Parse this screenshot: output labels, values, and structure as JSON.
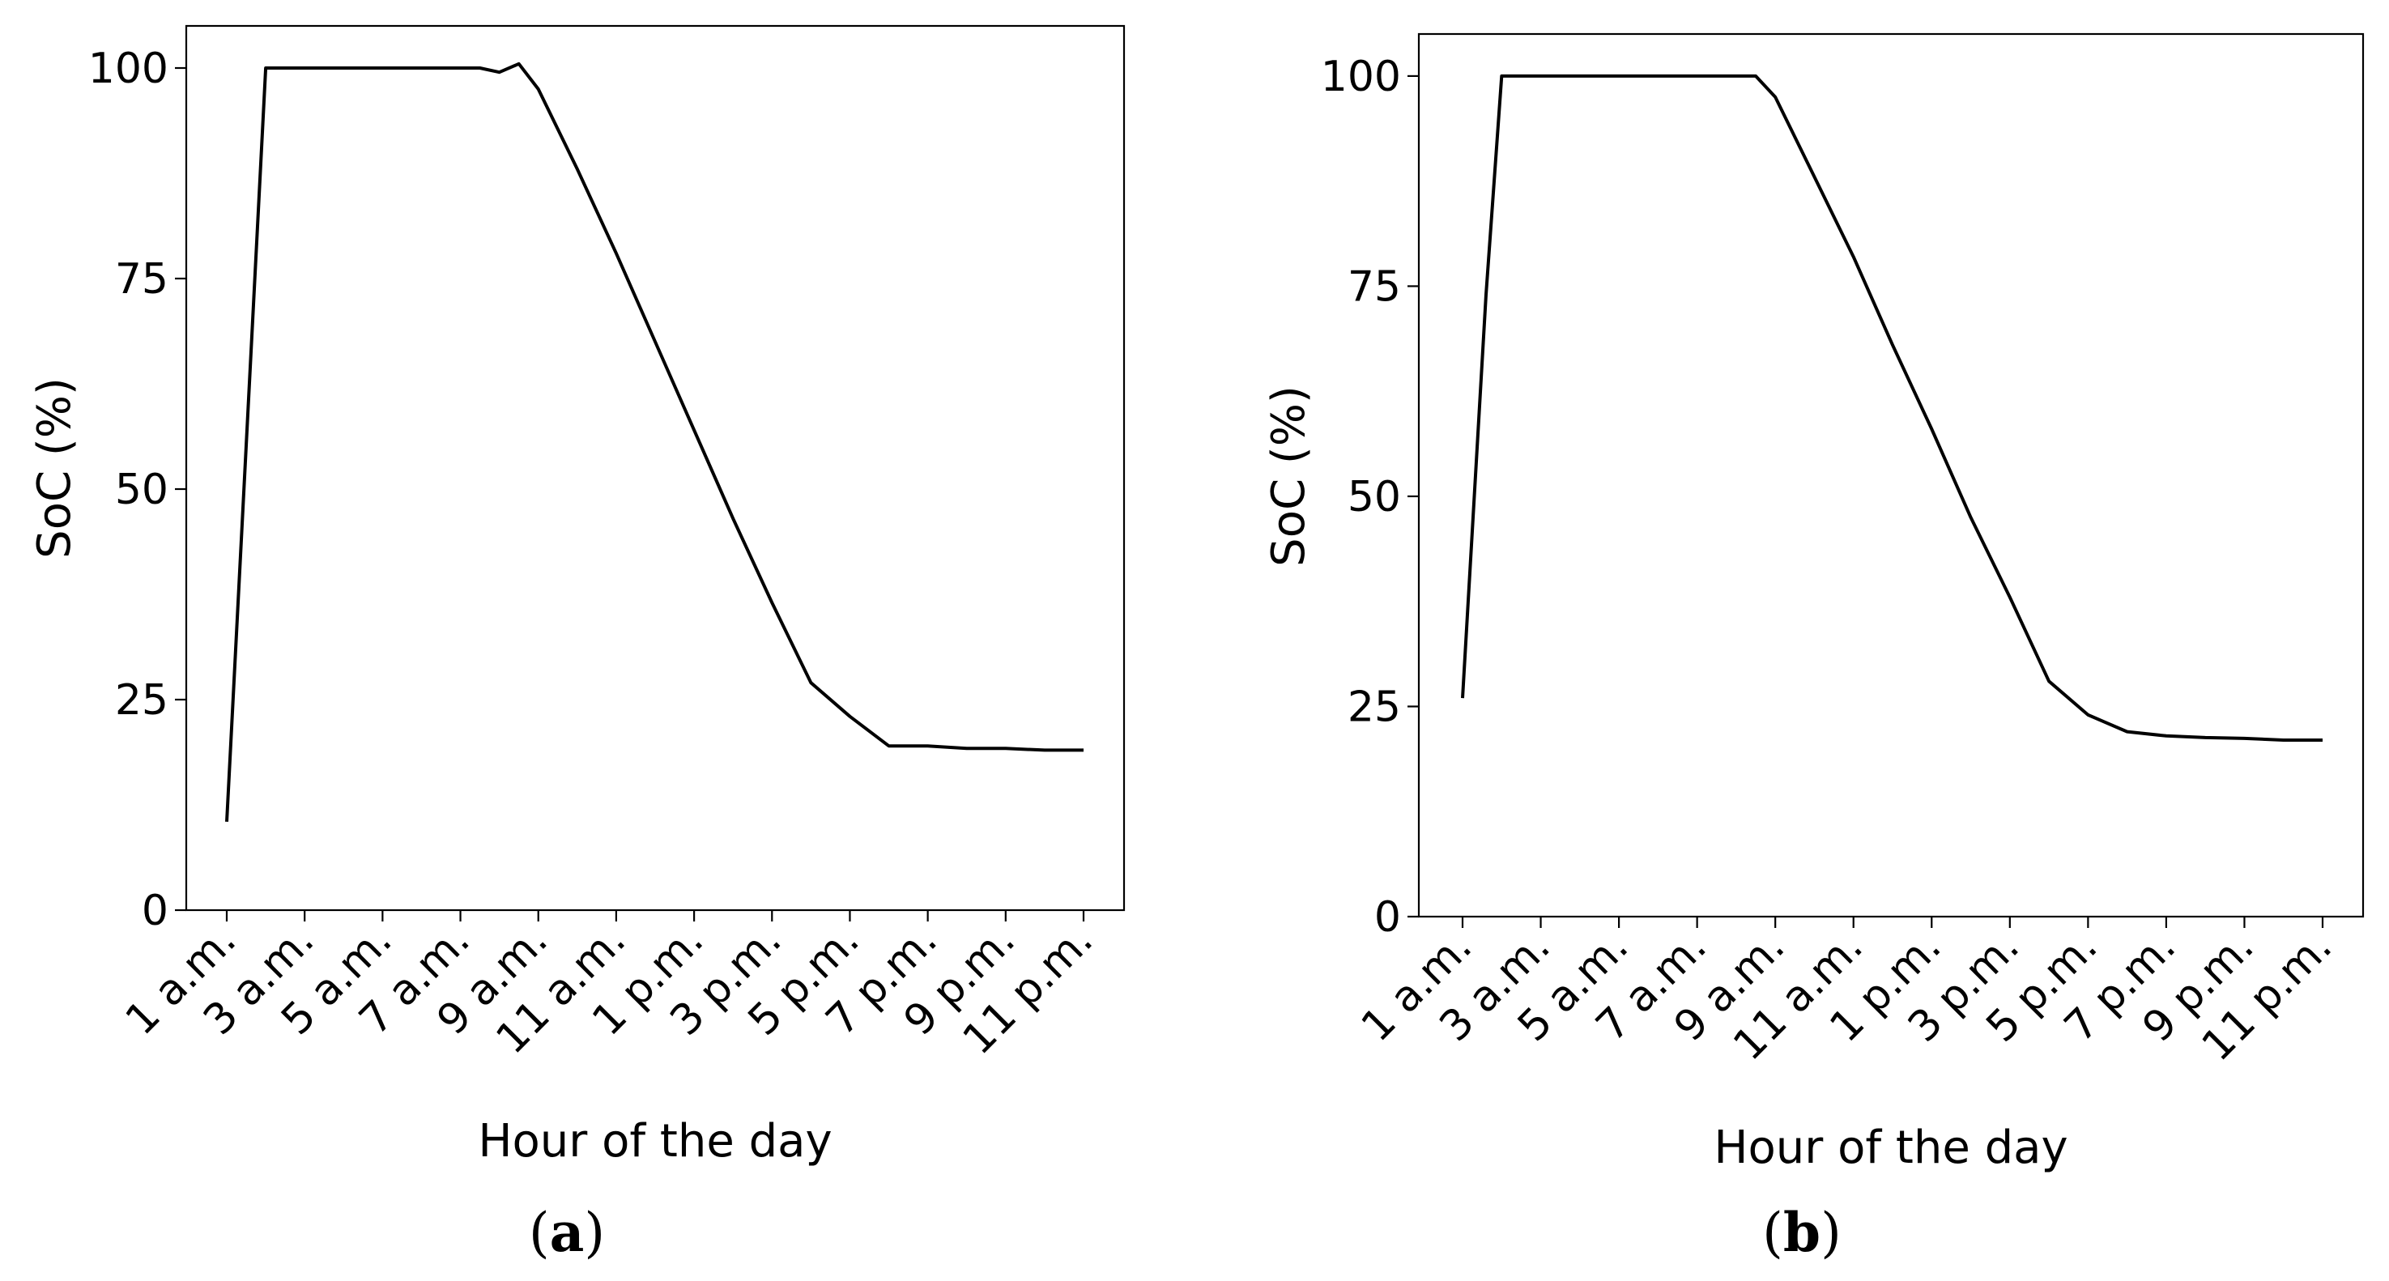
{
  "chart_data": [
    {
      "type": "line",
      "panel_label": "a",
      "xlabel": "Hour of the day",
      "ylabel": "SoC (%)",
      "ylim": [
        0,
        105
      ],
      "yticks": [
        0,
        25,
        50,
        75,
        100
      ],
      "xticks": [
        1,
        3,
        5,
        7,
        9,
        11,
        13,
        15,
        17,
        19,
        21,
        23
      ],
      "xtick_labels": [
        "1 a.m.",
        "3 a.m.",
        "5 a.m.",
        "7 a.m.",
        "9 a.m.",
        "11 a.m.",
        "1 p.m.",
        "3 p.m.",
        "5 p.m.",
        "7 p.m.",
        "9 p.m.",
        "11 p.m."
      ],
      "grid": false,
      "color": "#000000",
      "series": [
        {
          "x": [
            1,
            2,
            3,
            4,
            5,
            6,
            7,
            7.5,
            8,
            8.5,
            9,
            10,
            11,
            12,
            13,
            14,
            15,
            16,
            17,
            18,
            19,
            20,
            21,
            22,
            23
          ],
          "values": [
            10.5,
            100,
            100,
            100,
            100,
            100,
            100,
            100,
            99.5,
            100.5,
            97.5,
            88,
            78,
            67.5,
            57,
            46.5,
            36.5,
            27,
            23,
            19.5,
            19.5,
            19.2,
            19.2,
            19,
            19
          ]
        }
      ]
    },
    {
      "type": "line",
      "panel_label": "b",
      "xlabel": "Hour of the day",
      "ylabel": "SoC (%)",
      "ylim": [
        0,
        105
      ],
      "yticks": [
        0,
        25,
        50,
        75,
        100
      ],
      "xticks": [
        1,
        3,
        5,
        7,
        9,
        11,
        13,
        15,
        17,
        19,
        21,
        23
      ],
      "xtick_labels": [
        "1 a.m.",
        "3 a.m.",
        "5 a.m.",
        "7 a.m.",
        "9 a.m.",
        "11 a.m.",
        "1 p.m.",
        "3 p.m.",
        "5 p.m.",
        "7 p.m.",
        "9 p.m.",
        "11 p.m."
      ],
      "grid": false,
      "color": "#000000",
      "series": [
        {
          "x": [
            1,
            1.6,
            2,
            3,
            4,
            5,
            6,
            7,
            8,
            8.5,
            9,
            10,
            11,
            12,
            13,
            14,
            15,
            16,
            17,
            18,
            19,
            20,
            21,
            22,
            23
          ],
          "values": [
            26,
            74,
            100,
            100,
            100,
            100,
            100,
            100,
            100,
            100,
            97.5,
            88,
            78.5,
            68,
            58,
            47.5,
            38,
            28,
            24,
            22,
            21.5,
            21.3,
            21.2,
            21,
            21
          ]
        }
      ]
    }
  ]
}
